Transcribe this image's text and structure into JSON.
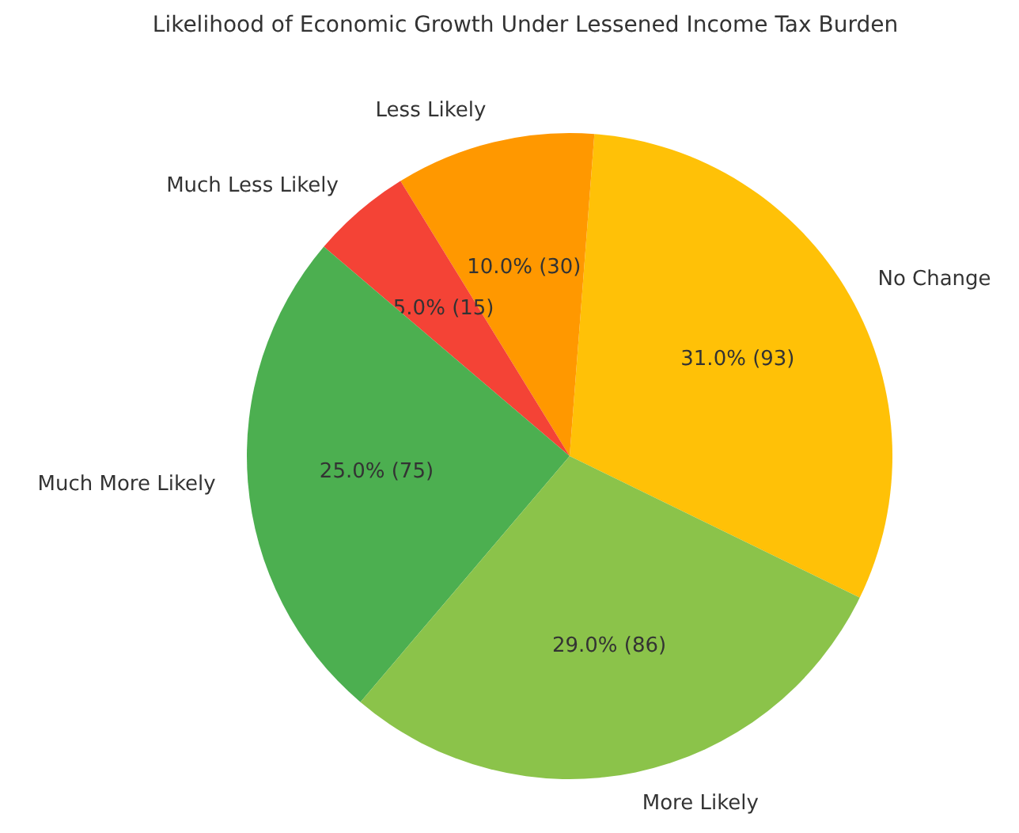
{
  "chart_data": {
    "type": "pie",
    "title": "Likelihood of Economic Growth Under Lessened Income Tax Burden",
    "categories": [
      "No Change",
      "Less Likely",
      "Much Less Likely",
      "Much More Likely",
      "More Likely"
    ],
    "values": [
      31,
      10,
      5,
      25,
      29
    ],
    "value_labels": [
      "31.0% (93)",
      "10.0% (30)",
      "5.0% (15)",
      "25.0% (75)",
      "29.0% (86)"
    ],
    "colors": [
      "#ffc107",
      "#ff9800",
      "#f44336",
      "#4caf50",
      "#8bc34a"
    ]
  }
}
